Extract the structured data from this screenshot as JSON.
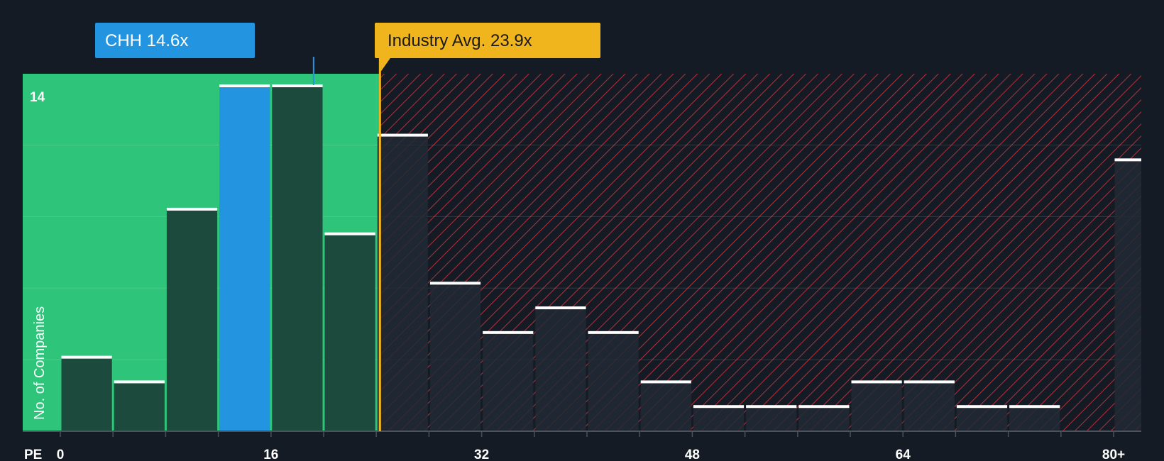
{
  "chart_data": {
    "type": "bar",
    "xlabel": "PE",
    "ylabel": "No. of Companies",
    "x_tick_labels": [
      "0",
      "16",
      "32",
      "48",
      "64",
      "80+"
    ],
    "x_tick_values": [
      0,
      16,
      32,
      48,
      64,
      80
    ],
    "bins": [
      {
        "x0": 0,
        "x1": 4,
        "value": 3
      },
      {
        "x0": 4,
        "x1": 8,
        "value": 2
      },
      {
        "x0": 8,
        "x1": 12,
        "value": 9
      },
      {
        "x0": 12,
        "x1": 16,
        "value": 14,
        "highlight": true
      },
      {
        "x0": 16,
        "x1": 20,
        "value": 14
      },
      {
        "x0": 20,
        "x1": 24,
        "value": 8
      },
      {
        "x0": 24,
        "x1": 28,
        "value": 12
      },
      {
        "x0": 28,
        "x1": 32,
        "value": 6
      },
      {
        "x0": 32,
        "x1": 36,
        "value": 4
      },
      {
        "x0": 36,
        "x1": 40,
        "value": 5
      },
      {
        "x0": 40,
        "x1": 44,
        "value": 4
      },
      {
        "x0": 44,
        "x1": 48,
        "value": 2
      },
      {
        "x0": 48,
        "x1": 52,
        "value": 1
      },
      {
        "x0": 52,
        "x1": 56,
        "value": 1
      },
      {
        "x0": 56,
        "x1": 60,
        "value": 1
      },
      {
        "x0": 60,
        "x1": 64,
        "value": 2
      },
      {
        "x0": 64,
        "x1": 68,
        "value": 2
      },
      {
        "x0": 68,
        "x1": 72,
        "value": 1
      },
      {
        "x0": 72,
        "x1": 76,
        "value": 1
      },
      {
        "x0": 80,
        "x1": 82,
        "value": 11
      }
    ],
    "ylim": [
      0,
      14.5
    ],
    "y_tick_labels": [
      "14"
    ],
    "y_tick_values": [
      14
    ],
    "grid": true,
    "company": {
      "label": "CHH 14.6x",
      "value": 14.6
    },
    "industry_avg": {
      "label": "Industry Avg. 23.9x",
      "value": 23.9
    },
    "fair_zone_end": 23.0
  },
  "colors": {
    "background": "#151b24",
    "fair_zone": "#2ec47a",
    "bar_in_zone": "#1c4a3c",
    "bar_highlight": "#2394e0",
    "bar_out_zone": "#212a35",
    "hatch_line": "#c7323c",
    "bar_top": "#ffffff",
    "industry_line": "#f0b41c",
    "company_callout": "#2394e0",
    "industry_callout": "#f0b41c"
  }
}
